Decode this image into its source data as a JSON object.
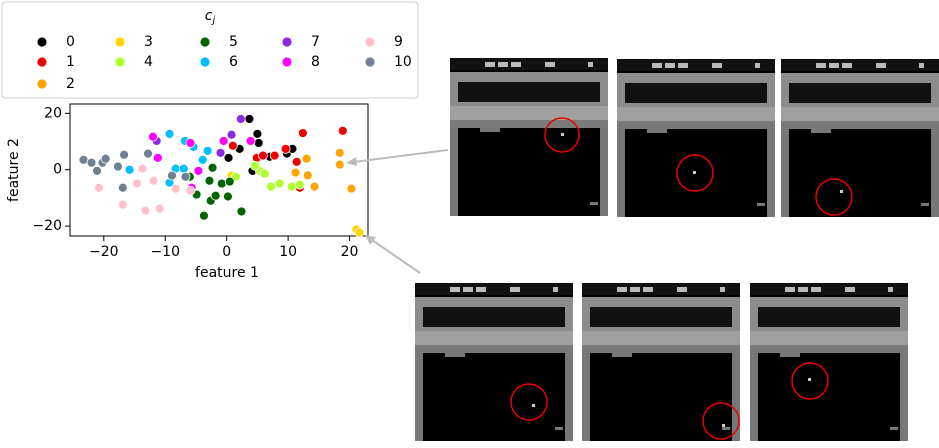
{
  "chart_data": {
    "type": "scatter",
    "xlabel": "feature 1",
    "ylabel": "feature 2",
    "legend_title": {
      "base": "c",
      "sub": "j"
    },
    "xlim": [
      -25.5,
      23
    ],
    "ylim": [
      -23.5,
      23.3
    ],
    "xticks": [
      {
        "value": -20,
        "label": "−20"
      },
      {
        "value": -10,
        "label": "−10"
      },
      0,
      10,
      20
    ],
    "yticks": [
      {
        "value": -20,
        "label": "−20"
      },
      0,
      20
    ],
    "series": [
      {
        "name": "0",
        "color": "#000000",
        "x": [
          3.7,
          5,
          5.2,
          0.3,
          9.8,
          10.7,
          7,
          4.2,
          2.1
        ],
        "y": [
          18,
          12.7,
          9.5,
          4.2,
          5.7,
          7.4,
          4.6,
          -0.4,
          7.4
        ]
      },
      {
        "name": "1",
        "color": "#ee0000",
        "x": [
          12.4,
          18.9,
          1,
          4.9,
          5.9,
          7.8,
          9.6,
          11.9,
          11.4
        ],
        "y": [
          13,
          13.8,
          8.5,
          4.2,
          5,
          5,
          7.4,
          -6.4,
          2.8
        ]
      },
      {
        "name": "2",
        "color": "#ffa500",
        "x": [
          18.4,
          18.4,
          20.3,
          14.3,
          13.2,
          11.2,
          13
        ],
        "y": [
          6,
          1.8,
          -6.7,
          -6,
          -2,
          -1,
          3.9
        ]
      },
      {
        "name": "3",
        "color": "#ffd700",
        "x": [
          21.1,
          21.6,
          0.8
        ],
        "y": [
          -21.2,
          -22.3,
          -2.1
        ]
      },
      {
        "name": "4",
        "color": "#adff2f",
        "x": [
          5.4,
          6.2,
          7.2,
          10.6,
          11.9,
          8.6,
          1.5,
          4.6
        ],
        "y": [
          -0.4,
          -1.4,
          -6,
          -6,
          -5.3,
          -4.9,
          -2.5,
          1.4
        ]
      },
      {
        "name": "5",
        "color": "#006400",
        "x": [
          -3.7,
          -2.6,
          -1.8,
          0.2,
          2.4,
          -4.9,
          -2.8,
          -2.3,
          -0.8,
          -6,
          0.5
        ],
        "y": [
          -16.3,
          -11,
          -9.2,
          -9.5,
          -14.8,
          -8.8,
          -3.9,
          0.7,
          -4.9,
          -2.5,
          -4.2
        ]
      },
      {
        "name": "6",
        "color": "#00bfff",
        "x": [
          -9.3,
          -6.8,
          -3.1,
          -8.3,
          -15.8,
          -9.3,
          -5.4,
          -3.9,
          -7
        ],
        "y": [
          12.7,
          10.2,
          6.7,
          0.4,
          0,
          -4.6,
          8.1,
          3.5,
          0.4
        ]
      },
      {
        "name": "7",
        "color": "#8a2be2",
        "x": [
          2.3,
          0.8,
          -1,
          -11.4
        ],
        "y": [
          18,
          12.4,
          6,
          10.2
        ]
      },
      {
        "name": "8",
        "color": "#ff00ff",
        "x": [
          -12,
          -11.2,
          -5.9,
          -0.5,
          3.9,
          -4.6,
          -5.7
        ],
        "y": [
          11.7,
          4.2,
          9.5,
          10.2,
          10.2,
          -0.4,
          -6.4
        ]
      },
      {
        "name": "9",
        "color": "#ffc0cb",
        "x": [
          -20.8,
          -16.9,
          -13.2,
          -10.9,
          -14.6,
          -13.7,
          -8.3,
          -5.9,
          -11.9
        ],
        "y": [
          -6.4,
          -12.4,
          -14.5,
          -13.8,
          -4.9,
          0.4,
          -6.7,
          -7.4,
          -3.9
        ]
      },
      {
        "name": "10",
        "color": "#708090",
        "x": [
          -23.3,
          -22,
          -20.2,
          -21.1,
          -19.7,
          -16.7,
          -12.8,
          -16.9,
          -8.9,
          -6.7,
          -17.7
        ],
        "y": [
          3.5,
          2.5,
          2.5,
          -0.4,
          3.9,
          5.3,
          5.7,
          -6.4,
          -2.1,
          -2.5,
          1.1
        ]
      }
    ]
  }
}
